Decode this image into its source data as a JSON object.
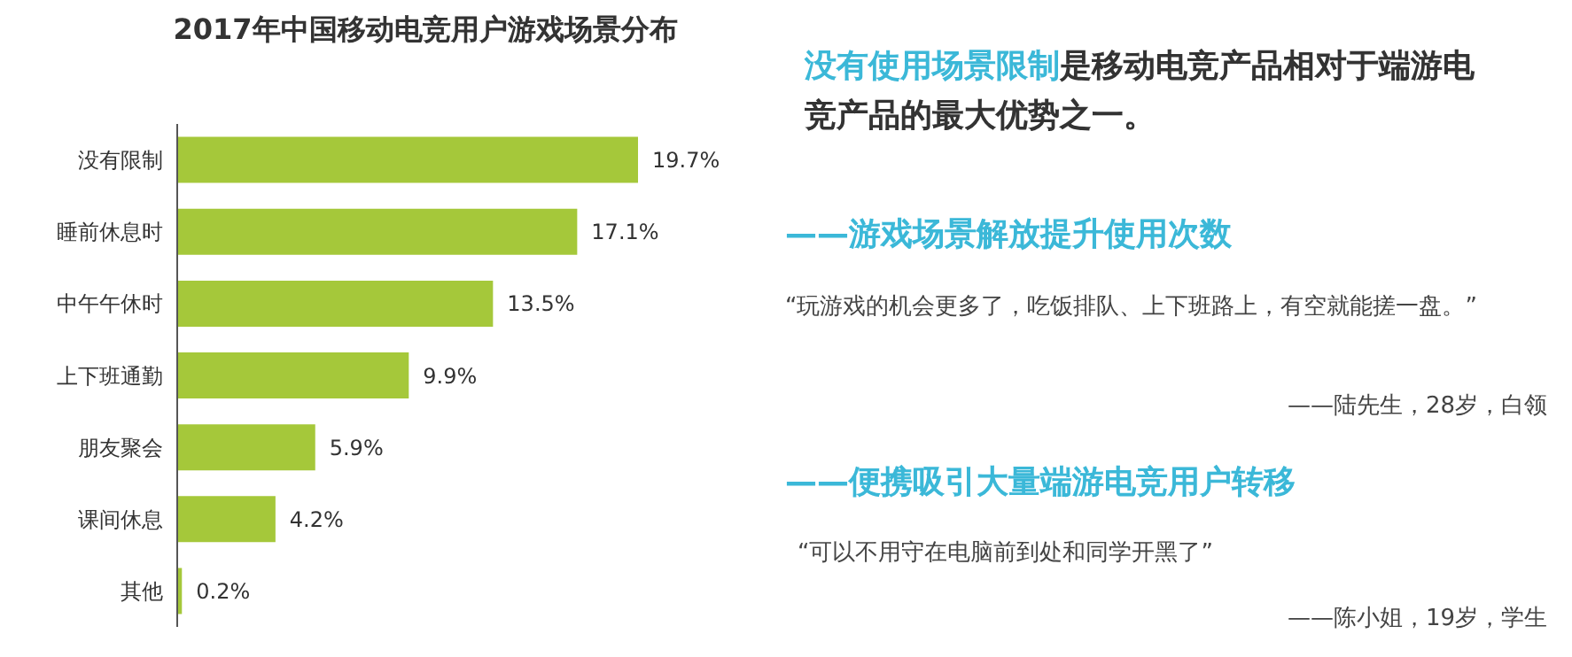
{
  "chart_data": {
    "type": "bar",
    "orientation": "horizontal",
    "title": "2017年中国移动电竞用户游戏场景分布",
    "categories": [
      "没有限制",
      "睡前休息时",
      "中午午休时",
      "上下班通勤",
      "朋友聚会",
      "课间休息",
      "其他"
    ],
    "values": [
      19.7,
      17.1,
      13.5,
      9.9,
      5.9,
      4.2,
      0.2
    ],
    "value_labels": [
      "19.7%",
      "17.1%",
      "13.5%",
      "9.9%",
      "5.9%",
      "4.2%",
      "0.2%"
    ],
    "color": "#a5c83a",
    "grid": false,
    "legend": false,
    "annotations": [
      "没有使用场景限制",
      "是移动电竞产品相对于端游电竞产品的最大优势之一。",
      "——游戏场景解放提升使用次数",
      "“玩游戏的机会更多了，吃饭排队、上下班路上，有空就能搓一盘。”",
      "——陆先生，28岁，白领",
      "——便携吸引大量端游电竞用户转移",
      "“可以不用守在电脑前到处和同学开黑了”",
      "——陈小姐，19岁，学生"
    ]
  }
}
